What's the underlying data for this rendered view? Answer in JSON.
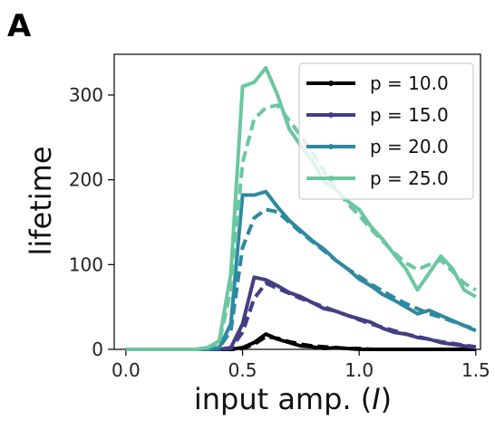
{
  "panel_label": "A",
  "chart_data": {
    "type": "line",
    "title": "",
    "xlabel_prefix": "input amp. (",
    "xlabel_var": "I",
    "xlabel_suffix": ")",
    "ylabel": "lifetime",
    "xlim": [
      -0.05,
      1.52
    ],
    "ylim": [
      0,
      348
    ],
    "xticks": [
      0.0,
      0.5,
      1.0,
      1.5
    ],
    "xtick_labels": [
      "0.0",
      "0.5",
      "1.0",
      "1.5"
    ],
    "yticks": [
      0,
      100,
      200,
      300
    ],
    "ytick_labels": [
      "0",
      "100",
      "200",
      "300"
    ],
    "grid": false,
    "legend_position": "top-right",
    "x": [
      0.0,
      0.1,
      0.2,
      0.3,
      0.35,
      0.4,
      0.45,
      0.5,
      0.55,
      0.6,
      0.65,
      0.7,
      0.75,
      0.8,
      0.85,
      0.9,
      0.95,
      1.0,
      1.05,
      1.1,
      1.15,
      1.2,
      1.25,
      1.3,
      1.35,
      1.4,
      1.45,
      1.5
    ],
    "series": [
      {
        "name": "p = 10.0",
        "color": "#000000",
        "values": [
          0,
          0,
          0,
          0,
          0,
          0,
          0,
          2,
          8,
          18,
          12,
          8,
          4,
          3,
          1,
          2,
          1,
          0,
          0,
          0,
          0,
          0,
          0,
          0,
          0,
          0,
          0,
          0
        ],
        "fit": [
          0,
          0,
          0,
          0,
          0,
          0,
          0,
          1,
          6,
          15,
          13,
          9,
          6,
          4,
          3,
          2,
          1,
          1,
          0,
          0,
          0,
          0,
          0,
          0,
          0,
          0,
          0,
          0
        ]
      },
      {
        "name": "p = 15.0",
        "color": "#433e85",
        "values": [
          0,
          0,
          0,
          0,
          0,
          0,
          2,
          30,
          85,
          82,
          75,
          67,
          62,
          55,
          48,
          45,
          40,
          36,
          32,
          25,
          20,
          18,
          14,
          12,
          8,
          6,
          4,
          2
        ],
        "fit": [
          0,
          0,
          0,
          0,
          0,
          0,
          1,
          20,
          60,
          78,
          72,
          66,
          60,
          55,
          50,
          45,
          40,
          35,
          30,
          26,
          22,
          18,
          15,
          12,
          9,
          7,
          5,
          3
        ]
      },
      {
        "name": "p = 20.0",
        "color": "#2c89a0",
        "values": [
          0,
          0,
          0,
          0,
          0,
          2,
          30,
          182,
          182,
          186,
          168,
          152,
          140,
          128,
          118,
          105,
          95,
          83,
          75,
          65,
          58,
          50,
          42,
          46,
          40,
          34,
          28,
          22
        ],
        "fit": [
          0,
          0,
          0,
          0,
          0,
          2,
          22,
          120,
          155,
          165,
          162,
          150,
          138,
          127,
          116,
          105,
          95,
          86,
          77,
          69,
          61,
          54,
          48,
          42,
          38,
          33,
          28,
          24
        ]
      },
      {
        "name": "p = 25.0",
        "color": "#6cc7a0",
        "values": [
          0,
          0,
          0,
          0,
          2,
          10,
          90,
          310,
          315,
          332,
          300,
          260,
          240,
          222,
          198,
          188,
          175,
          165,
          145,
          130,
          112,
          95,
          70,
          90,
          110,
          95,
          70,
          62
        ],
        "fit": [
          0,
          0,
          0,
          0,
          2,
          8,
          70,
          220,
          272,
          285,
          288,
          270,
          252,
          232,
          210,
          190,
          172,
          158,
          142,
          128,
          114,
          102,
          94,
          100,
          105,
          92,
          78,
          70
        ]
      }
    ]
  }
}
